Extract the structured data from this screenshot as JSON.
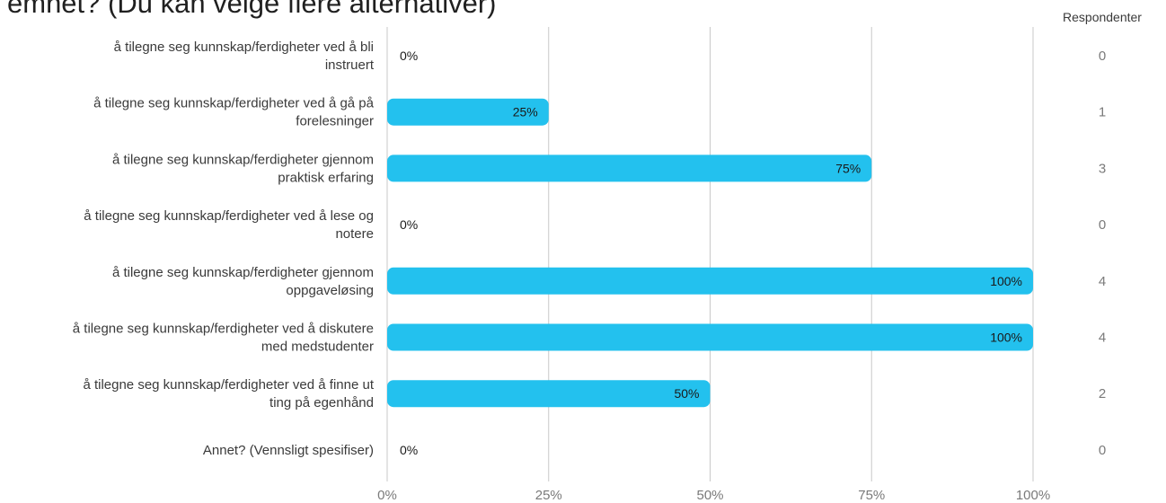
{
  "title": "emnet? (Du kan velge flere alternativer)",
  "chart_data": {
    "type": "bar",
    "orientation": "horizontal",
    "categories": [
      [
        "å tilegne seg kunnskap/ferdigheter ved å bli",
        "instruert"
      ],
      [
        "å tilegne seg kunnskap/ferdigheter ved å gå på",
        "forelesninger"
      ],
      [
        "å tilegne seg kunnskap/ferdigheter gjennom",
        "praktisk erfaring"
      ],
      [
        "å tilegne seg kunnskap/ferdigheter ved å lese og",
        "notere"
      ],
      [
        "å tilegne seg kunnskap/ferdigheter gjennom",
        "oppgaveløsing"
      ],
      [
        "å tilegne seg kunnskap/ferdigheter ved å diskutere",
        "med medstudenter"
      ],
      [
        "å tilegne seg kunnskap/ferdigheter ved å finne ut",
        "ting på egenhånd"
      ],
      [
        "Annet? (Vennsligt spesifiser)"
      ]
    ],
    "values": [
      0,
      25,
      75,
      0,
      100,
      100,
      50,
      0
    ],
    "value_labels": [
      "0%",
      "25%",
      "75%",
      "0%",
      "100%",
      "100%",
      "50%",
      "0%"
    ],
    "respondents_header": "Respondenter",
    "respondents": [
      0,
      1,
      3,
      0,
      4,
      4,
      2,
      0
    ],
    "xlim": [
      0,
      100
    ],
    "xticks": [
      "0%",
      "25%",
      "50%",
      "75%",
      "100%"
    ],
    "grid": true,
    "bar_color": "#23c1ee",
    "grid_color": "#c8c8c8",
    "text_color": "#3a3a3a",
    "muted_text_color": "#7a7a7a"
  }
}
